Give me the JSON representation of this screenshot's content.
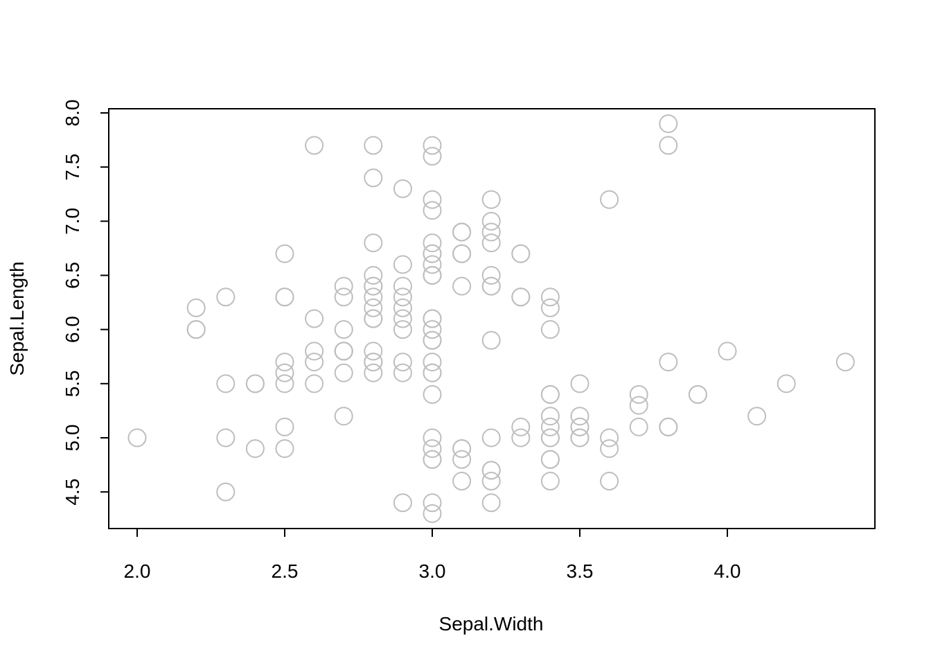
{
  "chart_data": {
    "type": "scatter",
    "title": "",
    "xlabel": "Sepal.Width",
    "ylabel": "Sepal.Length",
    "xlim": [
      1.9,
      4.5
    ],
    "ylim": [
      4.2,
      8.05
    ],
    "xticks": [
      2.0,
      2.5,
      3.0,
      3.5,
      4.0
    ],
    "xtick_labels": [
      "2.0",
      "2.5",
      "3.0",
      "3.5",
      "4.0"
    ],
    "yticks": [
      4.5,
      5.0,
      5.5,
      6.0,
      6.5,
      7.0,
      7.5,
      8.0
    ],
    "ytick_labels": [
      "4.5",
      "5.0",
      "5.5",
      "6.0",
      "6.5",
      "7.0",
      "7.5",
      "8.0"
    ],
    "grid": false,
    "marker": "open-circle",
    "marker_color": "#bebebe",
    "series": [
      {
        "x": [
          3.5,
          3.0,
          3.2,
          3.1,
          3.6,
          3.9,
          3.4,
          3.4,
          2.9,
          3.1,
          3.7,
          3.4,
          3.0,
          3.0,
          4.0,
          4.4,
          3.9,
          3.5,
          3.8,
          3.8,
          3.4,
          3.7,
          3.6,
          3.3,
          3.4,
          3.0,
          3.4,
          3.5,
          3.4,
          3.2,
          3.1,
          3.4,
          4.1,
          4.2,
          3.1,
          3.2,
          3.5,
          3.6,
          3.0,
          3.4,
          3.5,
          2.3,
          3.2,
          3.5,
          3.8,
          3.0,
          3.8,
          3.2,
          3.7,
          3.3,
          3.2,
          3.2,
          3.1,
          2.3,
          2.8,
          2.8,
          3.3,
          2.4,
          2.9,
          2.7,
          2.0,
          3.0,
          2.2,
          2.9,
          2.9,
          3.1,
          3.0,
          2.7,
          2.2,
          2.5,
          3.2,
          2.8,
          2.5,
          2.8,
          2.9,
          3.0,
          2.8,
          3.0,
          2.9,
          2.6,
          2.4,
          2.4,
          2.7,
          2.7,
          3.0,
          3.4,
          3.1,
          2.3,
          3.0,
          2.5,
          2.6,
          3.0,
          2.6,
          2.3,
          2.7,
          3.0,
          2.9,
          2.9,
          2.5,
          2.8,
          3.3,
          2.7,
          3.0,
          2.9,
          3.0,
          3.0,
          2.5,
          2.9,
          2.5,
          3.6,
          3.2,
          2.7,
          3.0,
          2.5,
          2.8,
          3.2,
          3.0,
          3.8,
          2.6,
          2.2,
          3.2,
          2.8,
          2.8,
          2.7,
          3.3,
          3.2,
          2.8,
          3.0,
          2.8,
          3.0,
          2.8,
          3.8,
          2.8,
          2.8,
          2.6,
          3.0,
          3.4,
          3.1,
          3.0,
          3.1,
          3.1,
          3.1,
          2.7,
          3.2,
          3.3,
          3.0,
          2.5,
          3.0,
          3.4,
          3.0
        ],
        "y": [
          5.1,
          4.9,
          4.7,
          4.6,
          5.0,
          5.4,
          4.6,
          5.0,
          4.4,
          4.9,
          5.4,
          4.8,
          4.8,
          4.3,
          5.8,
          5.7,
          5.4,
          5.1,
          5.7,
          5.1,
          5.4,
          5.1,
          4.6,
          5.1,
          4.8,
          5.0,
          5.0,
          5.2,
          5.2,
          4.7,
          4.8,
          5.4,
          5.2,
          5.5,
          4.9,
          5.0,
          5.5,
          4.9,
          4.4,
          5.1,
          5.0,
          4.5,
          4.4,
          5.0,
          5.1,
          4.8,
          5.1,
          4.6,
          5.3,
          5.0,
          7.0,
          6.4,
          6.9,
          5.5,
          6.5,
          5.7,
          6.3,
          4.9,
          6.6,
          5.2,
          5.0,
          5.9,
          6.0,
          6.1,
          5.6,
          6.7,
          5.6,
          5.8,
          6.2,
          5.6,
          5.9,
          6.1,
          6.3,
          6.1,
          6.4,
          6.6,
          6.8,
          6.7,
          6.0,
          5.7,
          5.5,
          5.5,
          5.8,
          6.0,
          5.4,
          6.0,
          6.7,
          6.3,
          5.6,
          5.5,
          5.5,
          6.1,
          5.8,
          5.0,
          5.6,
          5.7,
          5.7,
          6.2,
          5.1,
          5.7,
          6.3,
          5.8,
          7.1,
          6.3,
          6.5,
          7.6,
          4.9,
          7.3,
          6.7,
          7.2,
          6.5,
          6.4,
          6.8,
          5.7,
          5.8,
          6.4,
          6.5,
          7.7,
          7.7,
          6.0,
          6.9,
          5.6,
          7.7,
          6.3,
          6.7,
          7.2,
          6.2,
          6.1,
          6.4,
          7.2,
          7.4,
          7.9,
          6.4,
          6.3,
          6.1,
          7.7,
          6.3,
          6.4,
          6.0,
          6.9,
          6.7,
          6.9,
          5.8,
          6.8,
          6.7,
          6.7,
          6.3,
          6.5,
          6.2,
          5.9
        ]
      }
    ]
  }
}
